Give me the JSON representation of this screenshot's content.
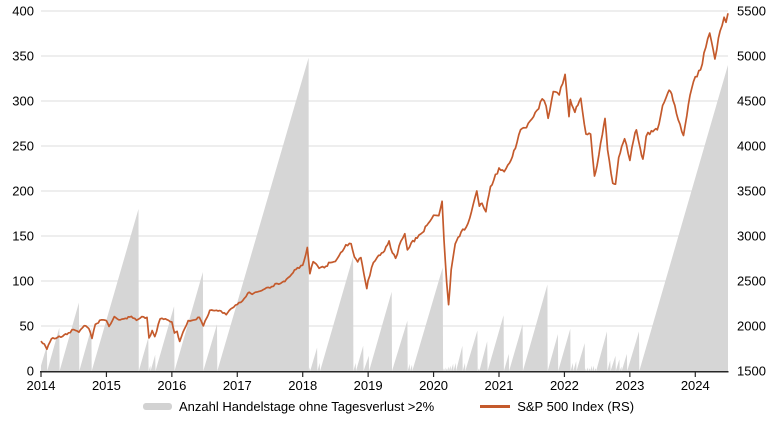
{
  "chart_data": {
    "type": "combo",
    "title": "",
    "legend_position": "bottom",
    "colors": {
      "area": "#d6d6d6",
      "line": "#c45a2c",
      "gridline": "#dcdcdc",
      "axis": "#262626"
    },
    "x_axis": {
      "min": 2014,
      "max": 2024.5,
      "ticks": [
        2014,
        2015,
        2016,
        2017,
        2018,
        2019,
        2020,
        2021,
        2022,
        2023,
        2024
      ]
    },
    "left_axis": {
      "min": 0,
      "max": 400,
      "ticks": [
        0,
        50,
        100,
        150,
        200,
        250,
        300,
        350,
        400
      ]
    },
    "right_axis": {
      "min": 1500,
      "max": 5500,
      "ticks": [
        1500,
        2000,
        2500,
        3000,
        3500,
        4000,
        4500,
        5000,
        5500
      ]
    },
    "series": [
      {
        "name": "Anzahl Handelstage ohne Tagesverlust >2%",
        "type": "area",
        "axis": "left",
        "points": [
          [
            2014.0,
            6
          ],
          [
            2014.09,
            28
          ],
          [
            2014.095,
            0
          ],
          [
            2014.28,
            48
          ],
          [
            2014.285,
            0
          ],
          [
            2014.58,
            76
          ],
          [
            2014.585,
            0
          ],
          [
            2014.77,
            48
          ],
          [
            2014.775,
            0
          ],
          [
            2015.49,
            180
          ],
          [
            2015.495,
            0
          ],
          [
            2015.64,
            37
          ],
          [
            2015.645,
            0
          ],
          [
            2015.67,
            6
          ],
          [
            2015.675,
            0
          ],
          [
            2015.745,
            18
          ],
          [
            2015.75,
            0
          ],
          [
            2016.035,
            72
          ],
          [
            2016.04,
            0
          ],
          [
            2016.475,
            110
          ],
          [
            2016.48,
            0
          ],
          [
            2016.69,
            52
          ],
          [
            2016.695,
            0
          ],
          [
            2018.09,
            348
          ],
          [
            2018.095,
            0
          ],
          [
            2018.11,
            4
          ],
          [
            2018.115,
            0
          ],
          [
            2018.22,
            26
          ],
          [
            2018.225,
            0
          ],
          [
            2018.26,
            9
          ],
          [
            2018.265,
            0
          ],
          [
            2018.77,
            127
          ],
          [
            2018.775,
            0
          ],
          [
            2018.81,
            9
          ],
          [
            2018.815,
            0
          ],
          [
            2018.925,
            28
          ],
          [
            2018.93,
            0
          ],
          [
            2019.01,
            17
          ],
          [
            2019.015,
            0
          ],
          [
            2019.36,
            88
          ],
          [
            2019.365,
            0
          ],
          [
            2019.6,
            56
          ],
          [
            2019.605,
            0
          ],
          [
            2019.635,
            8
          ],
          [
            2019.64,
            0
          ],
          [
            2019.67,
            7
          ],
          [
            2019.675,
            0
          ],
          [
            2020.14,
            115
          ],
          [
            2020.145,
            0
          ],
          [
            2020.16,
            3
          ],
          [
            2020.165,
            0
          ],
          [
            2020.18,
            4
          ],
          [
            2020.185,
            0
          ],
          [
            2020.2,
            3
          ],
          [
            2020.205,
            0
          ],
          [
            2020.23,
            5
          ],
          [
            2020.235,
            0
          ],
          [
            2020.26,
            6
          ],
          [
            2020.265,
            0
          ],
          [
            2020.3,
            8
          ],
          [
            2020.305,
            0
          ],
          [
            2020.34,
            9
          ],
          [
            2020.345,
            0
          ],
          [
            2020.44,
            28
          ],
          [
            2020.445,
            0
          ],
          [
            2020.48,
            9
          ],
          [
            2020.485,
            0
          ],
          [
            2020.67,
            45
          ],
          [
            2020.675,
            0
          ],
          [
            2020.695,
            3
          ],
          [
            2020.7,
            0
          ],
          [
            2020.82,
            33
          ],
          [
            2020.825,
            0
          ],
          [
            2021.07,
            62
          ],
          [
            2021.075,
            0
          ],
          [
            2021.15,
            19
          ],
          [
            2021.155,
            0
          ],
          [
            2021.36,
            52
          ],
          [
            2021.365,
            0
          ],
          [
            2021.74,
            96
          ],
          [
            2021.745,
            0
          ],
          [
            2021.9,
            41
          ],
          [
            2021.905,
            0
          ],
          [
            2022.09,
            47
          ],
          [
            2022.095,
            0
          ],
          [
            2022.13,
            9
          ],
          [
            2022.135,
            0
          ],
          [
            2022.18,
            11
          ],
          [
            2022.185,
            0
          ],
          [
            2022.31,
            31
          ],
          [
            2022.315,
            0
          ],
          [
            2022.33,
            3
          ],
          [
            2022.335,
            0
          ],
          [
            2022.36,
            4
          ],
          [
            2022.365,
            0
          ],
          [
            2022.39,
            3
          ],
          [
            2022.395,
            0
          ],
          [
            2022.42,
            6
          ],
          [
            2022.425,
            0
          ],
          [
            2022.45,
            6
          ],
          [
            2022.455,
            0
          ],
          [
            2022.48,
            3
          ],
          [
            2022.485,
            0
          ],
          [
            2022.65,
            44
          ],
          [
            2022.655,
            0
          ],
          [
            2022.7,
            12
          ],
          [
            2022.705,
            0
          ],
          [
            2022.78,
            17
          ],
          [
            2022.785,
            0
          ],
          [
            2022.84,
            13
          ],
          [
            2022.845,
            0
          ],
          [
            2022.87,
            5
          ],
          [
            2022.875,
            0
          ],
          [
            2022.955,
            19
          ],
          [
            2022.96,
            0
          ],
          [
            2023.14,
            44
          ],
          [
            2023.145,
            0
          ],
          [
            2024.5,
            340
          ]
        ]
      },
      {
        "name": "S&P 500 Index (RS)",
        "type": "line",
        "axis": "right",
        "points": [
          [
            2014.0,
            1832
          ],
          [
            2014.05,
            1800
          ],
          [
            2014.09,
            1742
          ],
          [
            2014.16,
            1859
          ],
          [
            2014.25,
            1872
          ],
          [
            2014.33,
            1884
          ],
          [
            2014.42,
            1924
          ],
          [
            2014.5,
            1960
          ],
          [
            2014.58,
            1931
          ],
          [
            2014.66,
            2003
          ],
          [
            2014.73,
            1972
          ],
          [
            2014.78,
            1862
          ],
          [
            2014.83,
            2018
          ],
          [
            2014.92,
            2068
          ],
          [
            2015.0,
            2059
          ],
          [
            2015.04,
            1995
          ],
          [
            2015.12,
            2105
          ],
          [
            2015.21,
            2068
          ],
          [
            2015.29,
            2086
          ],
          [
            2015.38,
            2107
          ],
          [
            2015.46,
            2063
          ],
          [
            2015.54,
            2104
          ],
          [
            2015.62,
            2096
          ],
          [
            2015.65,
            1868
          ],
          [
            2015.7,
            1950
          ],
          [
            2015.74,
            1882
          ],
          [
            2015.82,
            2079
          ],
          [
            2015.9,
            2080
          ],
          [
            2016.0,
            2044
          ],
          [
            2016.04,
            1922
          ],
          [
            2016.08,
            1940
          ],
          [
            2016.12,
            1829
          ],
          [
            2016.17,
            1932
          ],
          [
            2016.25,
            2060
          ],
          [
            2016.33,
            2065
          ],
          [
            2016.42,
            2097
          ],
          [
            2016.48,
            2001
          ],
          [
            2016.54,
            2099
          ],
          [
            2016.58,
            2174
          ],
          [
            2016.66,
            2171
          ],
          [
            2016.75,
            2168
          ],
          [
            2016.83,
            2126
          ],
          [
            2016.92,
            2199
          ],
          [
            2017.0,
            2239
          ],
          [
            2017.08,
            2279
          ],
          [
            2017.16,
            2364
          ],
          [
            2017.25,
            2363
          ],
          [
            2017.33,
            2384
          ],
          [
            2017.42,
            2412
          ],
          [
            2017.5,
            2423
          ],
          [
            2017.58,
            2470
          ],
          [
            2017.66,
            2472
          ],
          [
            2017.75,
            2519
          ],
          [
            2017.83,
            2575
          ],
          [
            2017.92,
            2648
          ],
          [
            2018.0,
            2674
          ],
          [
            2018.07,
            2872
          ],
          [
            2018.11,
            2581
          ],
          [
            2018.16,
            2714
          ],
          [
            2018.25,
            2641
          ],
          [
            2018.33,
            2648
          ],
          [
            2018.42,
            2705
          ],
          [
            2018.5,
            2718
          ],
          [
            2018.58,
            2816
          ],
          [
            2018.66,
            2902
          ],
          [
            2018.74,
            2914
          ],
          [
            2018.79,
            2768
          ],
          [
            2018.84,
            2712
          ],
          [
            2018.89,
            2760
          ],
          [
            2018.98,
            2416
          ],
          [
            2019.0,
            2507
          ],
          [
            2019.08,
            2704
          ],
          [
            2019.16,
            2785
          ],
          [
            2019.25,
            2834
          ],
          [
            2019.32,
            2946
          ],
          [
            2019.37,
            2812
          ],
          [
            2019.42,
            2752
          ],
          [
            2019.5,
            2942
          ],
          [
            2019.56,
            3026
          ],
          [
            2019.6,
            2845
          ],
          [
            2019.66,
            2926
          ],
          [
            2019.75,
            2977
          ],
          [
            2019.83,
            3038
          ],
          [
            2019.92,
            3141
          ],
          [
            2020.0,
            3231
          ],
          [
            2020.08,
            3226
          ],
          [
            2020.13,
            3386
          ],
          [
            2020.16,
            2954
          ],
          [
            2020.2,
            2481
          ],
          [
            2020.23,
            2237
          ],
          [
            2020.27,
            2627
          ],
          [
            2020.33,
            2912
          ],
          [
            2020.42,
            3044
          ],
          [
            2020.5,
            3100
          ],
          [
            2020.58,
            3271
          ],
          [
            2020.66,
            3500
          ],
          [
            2020.7,
            3331
          ],
          [
            2020.74,
            3363
          ],
          [
            2020.8,
            3270
          ],
          [
            2020.87,
            3550
          ],
          [
            2020.92,
            3622
          ],
          [
            2021.0,
            3756
          ],
          [
            2021.08,
            3714
          ],
          [
            2021.16,
            3811
          ],
          [
            2021.25,
            3973
          ],
          [
            2021.33,
            4181
          ],
          [
            2021.42,
            4204
          ],
          [
            2021.5,
            4298
          ],
          [
            2021.58,
            4395
          ],
          [
            2021.66,
            4523
          ],
          [
            2021.72,
            4444
          ],
          [
            2021.75,
            4308
          ],
          [
            2021.83,
            4605
          ],
          [
            2021.89,
            4594
          ],
          [
            2021.92,
            4567
          ],
          [
            2022.0,
            4766
          ],
          [
            2022.01,
            4796
          ],
          [
            2022.07,
            4327
          ],
          [
            2022.09,
            4516
          ],
          [
            2022.16,
            4374
          ],
          [
            2022.25,
            4530
          ],
          [
            2022.33,
            4132
          ],
          [
            2022.4,
            4132
          ],
          [
            2022.46,
            3667
          ],
          [
            2022.5,
            3785
          ],
          [
            2022.58,
            4130
          ],
          [
            2022.62,
            4305
          ],
          [
            2022.66,
            3955
          ],
          [
            2022.74,
            3586
          ],
          [
            2022.78,
            3577
          ],
          [
            2022.83,
            3872
          ],
          [
            2022.92,
            4080
          ],
          [
            2023.0,
            3840
          ],
          [
            2023.06,
            4077
          ],
          [
            2023.1,
            4179
          ],
          [
            2023.16,
            3970
          ],
          [
            2023.2,
            3855
          ],
          [
            2023.25,
            4109
          ],
          [
            2023.33,
            4169
          ],
          [
            2023.42,
            4180
          ],
          [
            2023.5,
            4450
          ],
          [
            2023.58,
            4589
          ],
          [
            2023.62,
            4607
          ],
          [
            2023.66,
            4508
          ],
          [
            2023.74,
            4288
          ],
          [
            2023.82,
            4117
          ],
          [
            2023.92,
            4568
          ],
          [
            2024.0,
            4770
          ],
          [
            2024.08,
            4846
          ],
          [
            2024.16,
            5096
          ],
          [
            2024.22,
            5254
          ],
          [
            2024.3,
            4967
          ],
          [
            2024.38,
            5278
          ],
          [
            2024.44,
            5430
          ],
          [
            2024.47,
            5375
          ],
          [
            2024.5,
            5475
          ]
        ]
      }
    ]
  }
}
